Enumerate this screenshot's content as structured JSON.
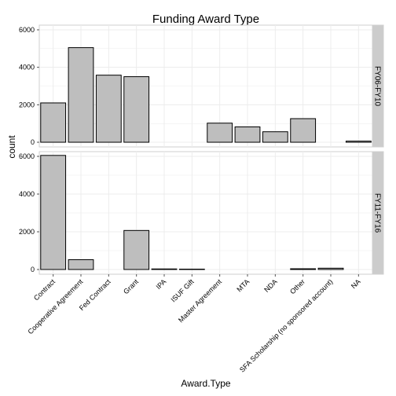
{
  "chart_data": {
    "type": "bar",
    "title": "Funding Award Type",
    "xlabel": "Award.Type",
    "ylabel": "count",
    "ylim": [
      -250,
      6250
    ],
    "yticks": [
      0,
      2000,
      4000,
      6000
    ],
    "grid": true,
    "facet_orientation": "rows",
    "categories": [
      "Contract",
      "Cooperative Agreement",
      "Fed Contract",
      "Grant",
      "IPA",
      "ISUF Gift",
      "Master Agreement",
      "MTA",
      "NDA",
      "Other",
      "SFA Scholarship (no sponsored account)",
      "NA"
    ],
    "panels": [
      {
        "strip": "FY06-FY10",
        "values": [
          2100,
          5050,
          3580,
          3500,
          0,
          0,
          1020,
          820,
          560,
          1260,
          0,
          60
        ]
      },
      {
        "strip": "FY11-FY16",
        "values": [
          6050,
          520,
          0,
          2070,
          30,
          20,
          0,
          0,
          0,
          40,
          70,
          0
        ]
      }
    ],
    "colors": {
      "bar_fill": "#bebebe",
      "bar_stroke": "#000000",
      "panel_bg": "#ffffff",
      "grid": "#ececec",
      "panel_border": "#cfcfcf",
      "strip_bg": "#cccccc"
    }
  }
}
